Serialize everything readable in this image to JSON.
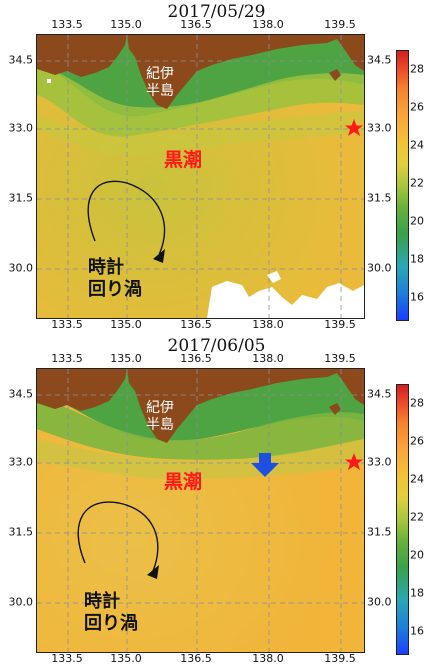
{
  "panels": [
    {
      "date": "2017/05/29",
      "lon_ticks": [
        "133.5",
        "135.0",
        "136.5",
        "138.0",
        "139.5"
      ],
      "lat_ticks": [
        "34.5",
        "33.0",
        "31.5",
        "30.0"
      ],
      "kii_label": [
        "紀伊",
        "半島"
      ],
      "kuroshio_label": "黒潮",
      "eddy_label": [
        "時計",
        "回り渦"
      ],
      "has_blue_arrow": false
    },
    {
      "date": "2017/06/05",
      "lon_ticks": [
        "133.5",
        "135.0",
        "136.5",
        "138.0",
        "139.5"
      ],
      "lat_ticks": [
        "34.5",
        "33.0",
        "31.5",
        "30.0"
      ],
      "kii_label": [
        "紀伊",
        "半島"
      ],
      "kuroshio_label": "黒潮",
      "eddy_label": [
        "時計",
        "回り渦"
      ],
      "has_blue_arrow": true
    }
  ],
  "colorbar": {
    "ticks": [
      "28",
      "26",
      "24",
      "22",
      "20",
      "18",
      "16"
    ],
    "range": [
      15,
      29
    ]
  },
  "colors": {
    "land": "#8c4a1c",
    "warm_sea": "#f0b63a",
    "cool_sea": "#5aa845",
    "marker_star": "#ff1a1a",
    "arrow_blue": "#1f4fe0"
  },
  "icons": [
    "star-marker-icon",
    "down-arrow-icon",
    "clockwise-eddy-arrow-icon"
  ]
}
